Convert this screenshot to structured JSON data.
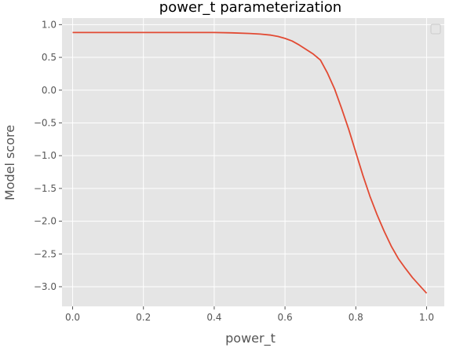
{
  "chart_data": {
    "type": "line",
    "title": "power_t parameterization",
    "xlabel": "power_t",
    "ylabel": "Model score",
    "xlim": [
      -0.03,
      1.05
    ],
    "ylim": [
      -3.3,
      1.1
    ],
    "xticks": [
      0.0,
      0.2,
      0.4,
      0.6,
      0.8,
      1.0
    ],
    "xtick_labels": [
      "0.0",
      "0.2",
      "0.4",
      "0.6",
      "0.8",
      "1.0"
    ],
    "yticks": [
      1.0,
      0.5,
      0.0,
      -0.5,
      -1.0,
      -1.5,
      -2.0,
      -2.5,
      -3.0
    ],
    "ytick_labels": [
      "1.0",
      "0.5",
      "0.0",
      "−0.5",
      "−1.0",
      "−1.5",
      "−2.0",
      "−2.5",
      "−3.0"
    ],
    "grid": true,
    "legend": "top-right (empty)",
    "series": [
      {
        "color": "#E24A33",
        "x": [
          0.0,
          0.1,
          0.2,
          0.3,
          0.4,
          0.45,
          0.5,
          0.53,
          0.56,
          0.58,
          0.6,
          0.62,
          0.64,
          0.66,
          0.68,
          0.7,
          0.72,
          0.74,
          0.76,
          0.78,
          0.8,
          0.82,
          0.84,
          0.86,
          0.88,
          0.9,
          0.92,
          0.94,
          0.96,
          0.98,
          1.0
        ],
        "y": [
          0.88,
          0.88,
          0.88,
          0.88,
          0.88,
          0.875,
          0.865,
          0.855,
          0.84,
          0.82,
          0.79,
          0.75,
          0.69,
          0.62,
          0.55,
          0.46,
          0.26,
          0.02,
          -0.28,
          -0.6,
          -0.95,
          -1.3,
          -1.62,
          -1.9,
          -2.15,
          -2.38,
          -2.57,
          -2.72,
          -2.86,
          -2.98,
          -3.1
        ]
      }
    ]
  }
}
